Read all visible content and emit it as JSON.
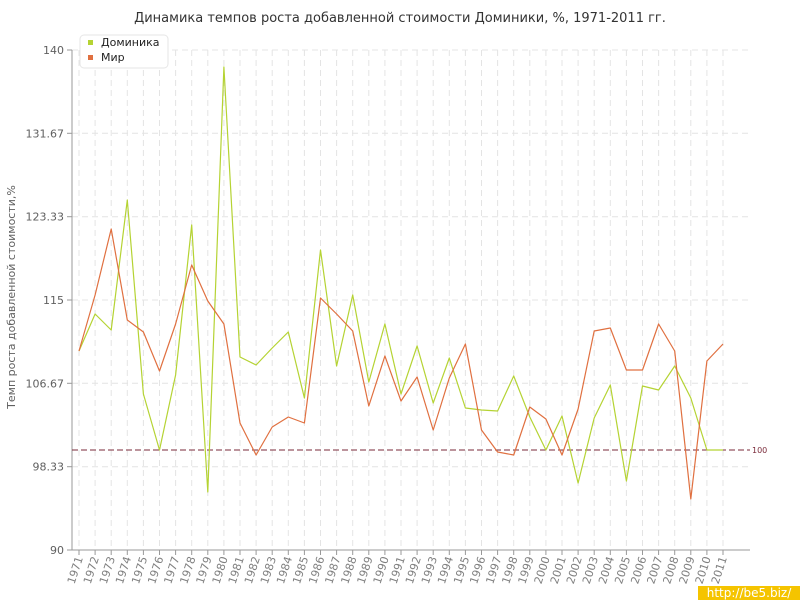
{
  "chart_data": {
    "type": "line",
    "title": "Динамика темпов роста добавленной стоимости Доминики, %, 1971-2011 гг.",
    "ylabel": "Темп роста добавленной стоимости,%",
    "xlabel": "",
    "ylim": [
      90,
      140
    ],
    "yticks": [
      "90",
      "98.33",
      "106.67",
      "115",
      "123.33",
      "131.67",
      "140"
    ],
    "x": [
      "1971",
      "1972",
      "1973",
      "1974",
      "1975",
      "1976",
      "1977",
      "1978",
      "1979",
      "1980",
      "1981",
      "1982",
      "1983",
      "1984",
      "1985",
      "1986",
      "1987",
      "1988",
      "1989",
      "1990",
      "1991",
      "1992",
      "1993",
      "1994",
      "1995",
      "1996",
      "1997",
      "1998",
      "1999",
      "2000",
      "2001",
      "2002",
      "2003",
      "2004",
      "2005",
      "2006",
      "2007",
      "2008",
      "2009",
      "2010",
      "2011"
    ],
    "series": [
      {
        "name": "Доминика",
        "color": "#b5d333",
        "values": [
          109.9,
          113.6,
          112.0,
          125.0,
          105.6,
          100.0,
          107.5,
          122.5,
          95.8,
          138.3,
          109.3,
          108.5,
          110.2,
          111.8,
          105.2,
          120.0,
          108.4,
          115.5,
          106.8,
          112.6,
          105.6,
          110.4,
          104.7,
          109.2,
          104.2,
          104.0,
          103.9,
          107.4,
          103.3,
          100.0,
          103.4,
          96.7,
          103.2,
          106.5,
          96.9,
          106.4,
          106.0,
          108.4,
          105.2,
          100.0,
          100.0
        ]
      },
      {
        "name": "Мир",
        "color": "#e07040",
        "values": [
          109.9,
          115.5,
          122.1,
          113.0,
          111.8,
          107.9,
          112.6,
          118.5,
          114.9,
          112.6,
          102.7,
          99.5,
          102.3,
          103.3,
          102.7,
          115.2,
          113.6,
          111.9,
          104.4,
          109.4,
          104.9,
          107.3,
          102.0,
          107.2,
          110.6,
          102.0,
          99.8,
          99.5,
          104.3,
          103.1,
          99.5,
          104.1,
          111.9,
          112.2,
          108.0,
          108.0,
          112.6,
          109.9,
          95.1,
          108.9,
          110.6
        ]
      }
    ],
    "reference_line": {
      "value": 100,
      "label": "100",
      "color": "#7a2a3a"
    },
    "grid": true,
    "legend_position": "top-left"
  },
  "watermark": "http://be5.biz/"
}
